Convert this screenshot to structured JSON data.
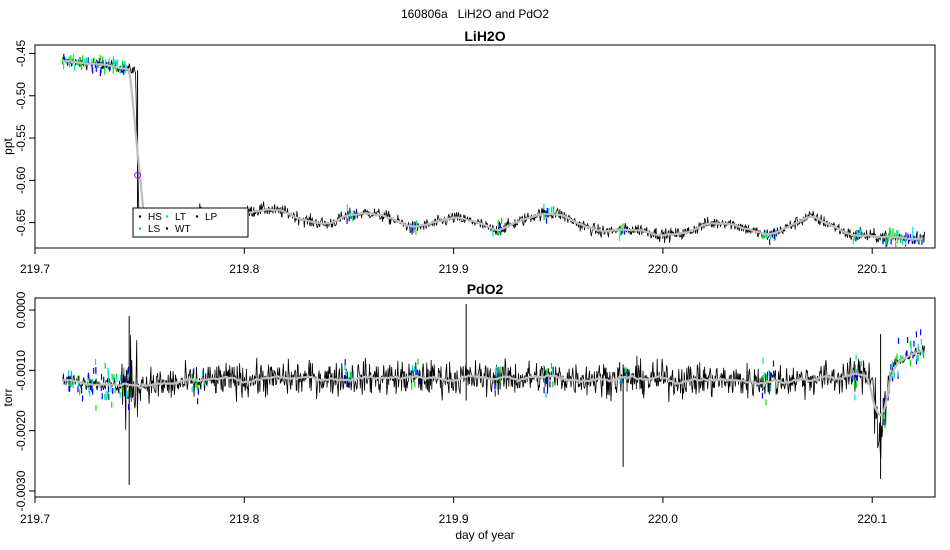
{
  "page_title": "160806a   LiH2O and PdO2",
  "legend": {
    "entries": [
      {
        "label": "HS",
        "color": "#000000"
      },
      {
        "label": "LS",
        "color": "#00dd00"
      },
      {
        "label": "LT",
        "color": "#00cccc"
      },
      {
        "label": "WT",
        "color": "#000000"
      },
      {
        "label": "LP",
        "color": "#000000"
      }
    ]
  },
  "colors": {
    "trace": "#000000",
    "smooth": "#bebebe",
    "high_rate_a": "#0000ff",
    "high_rate_b": "#00e000",
    "high_rate_c": "#00e0e0",
    "marker": "#a020f0"
  },
  "chart_data": [
    {
      "type": "line",
      "title": "LiH2O",
      "xlabel": "",
      "ylabel": "ppt",
      "xlim": [
        219.7,
        220.13
      ],
      "ylim": [
        -0.68,
        -0.44
      ],
      "x_ticks": [
        "219.7",
        "219.8",
        "219.9",
        "220.0",
        "220.1"
      ],
      "y_ticks": [
        "-0.45",
        "-0.50",
        "-0.55",
        "-0.60",
        "-0.65"
      ],
      "grid": false,
      "legend_position": "bottom-left",
      "series": [
        {
          "x": [
            219.713,
            219.72,
            219.73,
            219.74,
            219.748,
            219.749,
            219.75,
            219.76,
            219.77,
            219.78,
            219.79,
            219.8,
            219.81,
            219.82,
            219.83,
            219.84,
            219.85,
            219.86,
            219.87,
            219.88,
            219.89,
            219.9,
            219.91,
            219.92,
            219.93,
            219.94,
            219.95,
            219.96,
            219.97,
            219.98,
            219.99,
            220.0,
            220.01,
            220.02,
            220.03,
            220.04,
            220.05,
            220.06,
            220.07,
            220.08,
            220.09,
            220.1,
            220.11,
            220.12,
            220.125
          ],
          "y": [
            -0.458,
            -0.461,
            -0.463,
            -0.466,
            -0.47,
            -0.58,
            -0.66,
            -0.645,
            -0.641,
            -0.64,
            -0.652,
            -0.638,
            -0.634,
            -0.638,
            -0.648,
            -0.652,
            -0.641,
            -0.638,
            -0.645,
            -0.656,
            -0.652,
            -0.644,
            -0.649,
            -0.66,
            -0.65,
            -0.64,
            -0.639,
            -0.652,
            -0.661,
            -0.659,
            -0.658,
            -0.665,
            -0.663,
            -0.652,
            -0.649,
            -0.657,
            -0.666,
            -0.655,
            -0.642,
            -0.652,
            -0.665,
            -0.666,
            -0.667,
            -0.668,
            -0.668
          ]
        }
      ],
      "annotations": [
        {
          "text": "marker",
          "x": 219.749,
          "y": -0.594
        }
      ]
    },
    {
      "type": "line",
      "title": "PdO2",
      "xlabel": "day of year",
      "ylabel": "torr",
      "xlim": [
        219.7,
        220.13
      ],
      "ylim": [
        -0.0031,
        0.0002
      ],
      "x_ticks": [
        "219.7",
        "219.8",
        "219.9",
        "220.0",
        "220.1"
      ],
      "y_ticks": [
        "0.0000",
        "-0.0010",
        "-0.0020",
        "-0.0030"
      ],
      "grid": false,
      "series": [
        {
          "x": [
            219.713,
            219.72,
            219.73,
            219.74,
            219.745,
            219.75,
            219.76,
            219.78,
            219.8,
            219.85,
            219.9,
            219.95,
            220.0,
            220.05,
            220.09,
            220.1,
            220.103,
            220.11,
            220.12,
            220.125
          ],
          "y": [
            -0.00115,
            -0.00118,
            -0.00122,
            -0.00125,
            -0.0013,
            -0.0012,
            -0.00125,
            -0.00118,
            -0.00115,
            -0.00112,
            -0.00113,
            -0.00112,
            -0.00115,
            -0.00118,
            -0.0011,
            -0.00105,
            -0.0022,
            -0.0009,
            -0.0007,
            -0.00068
          ]
        }
      ],
      "spikes": [
        {
          "x": 219.745,
          "low": -0.0029,
          "high": -0.0001
        },
        {
          "x": 219.906,
          "low": -0.0015,
          "high": 0.0001
        },
        {
          "x": 219.981,
          "low": -0.0026,
          "high": -0.0009
        },
        {
          "x": 220.104,
          "low": -0.0028,
          "high": -0.0004
        }
      ]
    }
  ]
}
